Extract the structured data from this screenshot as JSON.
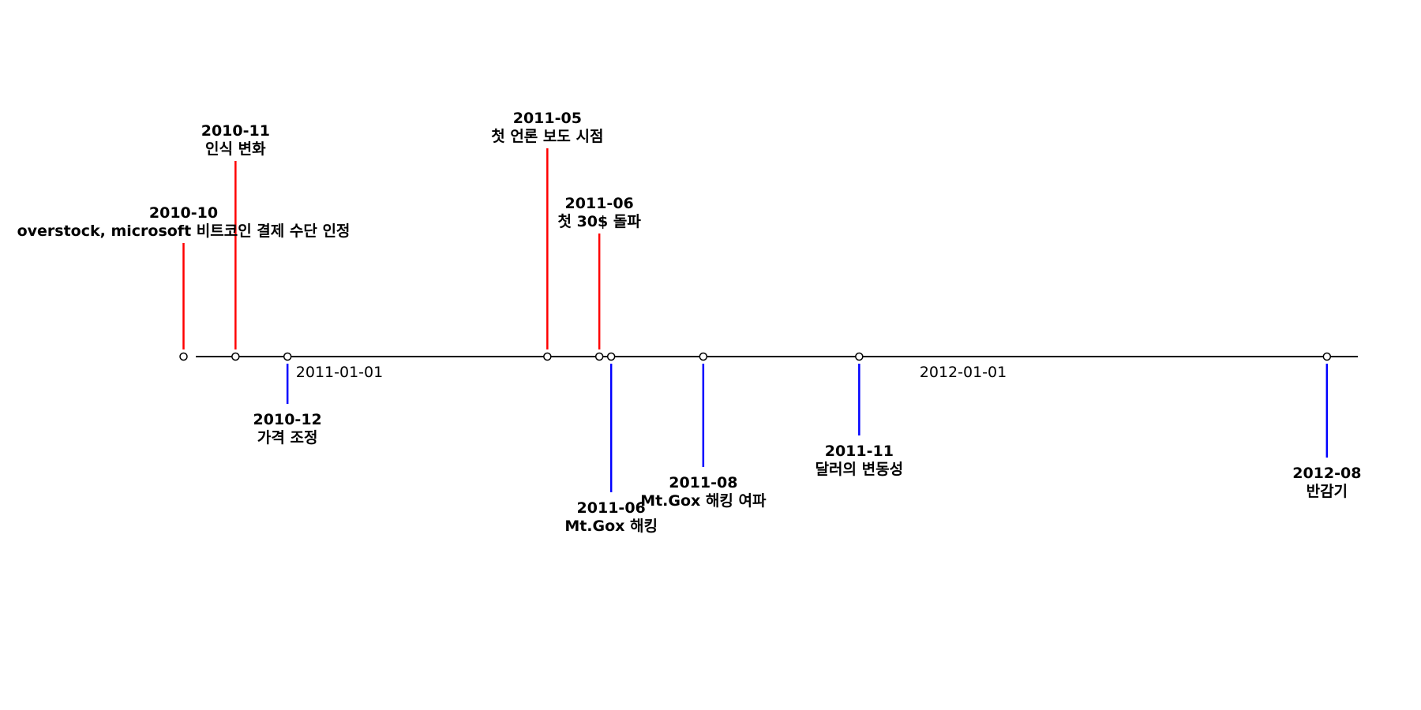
{
  "chart_data": {
    "type": "timeline",
    "title": "",
    "grid": false,
    "axis_ticks": [
      "2011-01-01",
      "2012-01-01"
    ],
    "colors": {
      "above": "#ff0000",
      "below": "#0000ff",
      "axis": "#000000"
    },
    "events": [
      {
        "date": "2010-10",
        "label": "overstock, microsoft 비트코인 결제 수단 인정",
        "level": 3.6
      },
      {
        "date": "2010-11",
        "label": "인식 변화",
        "level": 6.2
      },
      {
        "date": "2010-12",
        "label": "가격 조정",
        "level": -1.5
      },
      {
        "date": "2011-05",
        "label": "첫 언론 보도 시점",
        "level": 6.6
      },
      {
        "date": "2011-06",
        "label": "첫 30$ 돌파",
        "level": 3.9
      },
      {
        "date": "2011-06",
        "label": "Mt.Gox 해킹",
        "level": -4.3
      },
      {
        "date": "2011-08",
        "label": "Mt.Gox 해킹 여파",
        "level": -3.5
      },
      {
        "date": "2011-11",
        "label": "달러의 변동성",
        "level": -2.5
      },
      {
        "date": "2012-08",
        "label": "반감기",
        "level": -3.2
      }
    ]
  }
}
